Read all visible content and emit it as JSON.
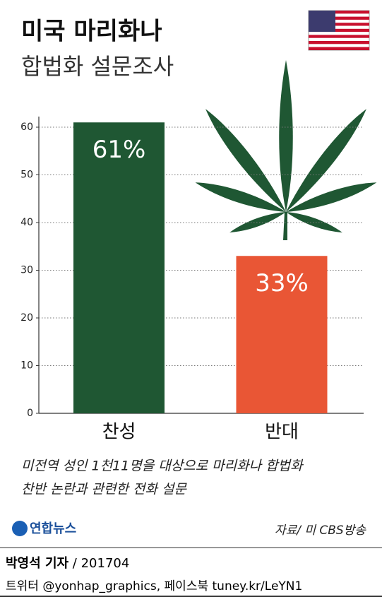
{
  "chart_data": {
    "type": "bar",
    "title": "미국 마리화나",
    "subtitle": "합법화 설문조사",
    "categories": [
      "찬성",
      "반대"
    ],
    "values": [
      61,
      33
    ],
    "value_labels": [
      "61%",
      "33%"
    ],
    "colors": [
      "#1f5733",
      "#e95635"
    ],
    "ylim": [
      0,
      60
    ],
    "yticks": [
      0,
      10,
      20,
      30,
      40,
      50,
      60
    ],
    "grid": true,
    "note": [
      "미전역 성인 1천11명을 대상으로 마리화나 합법화",
      "찬반 논란과 관련한 전화 설문"
    ],
    "source": "자료/ 미 CBS방송",
    "brand": "연합뉴스"
  },
  "footer": {
    "byline": "박영석 기자",
    "date": "201704",
    "contact": "트위터 @yonhap_graphics, 페이스북 tuney.kr/LeYN1"
  }
}
